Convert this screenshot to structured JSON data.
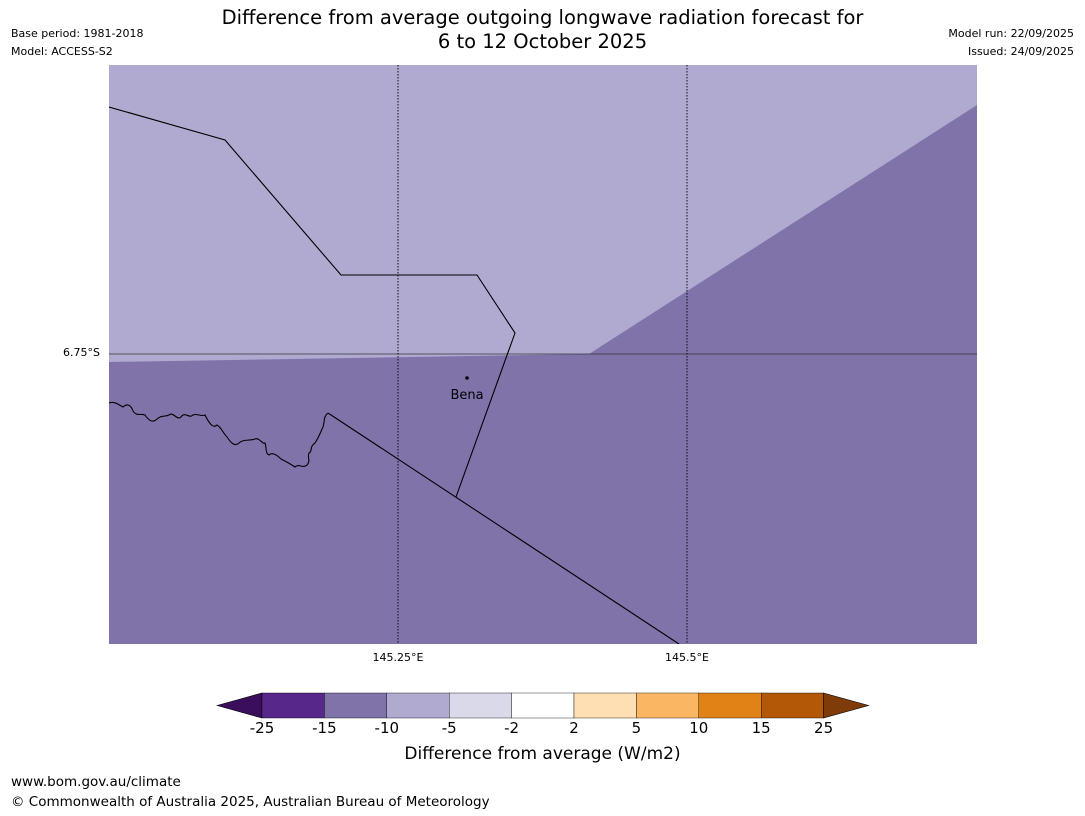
{
  "title_line1": "Difference from average outgoing longwave radiation forecast for",
  "title_line2": "6 to 12 October 2025",
  "meta_left": {
    "base_period": "Base period: 1981-2018",
    "model": "Model: ACCESS-S2"
  },
  "meta_right": {
    "model_run": "Model run: 22/09/2025",
    "issued": "Issued: 24/09/2025"
  },
  "map": {
    "latitude_labels": [
      "6.75°S"
    ],
    "longitude_labels": [
      "145.25°E",
      "145.5°E"
    ],
    "places": [
      {
        "name": "Bena"
      }
    ],
    "region_colors": {
      "light": "#b0aad1",
      "dark": "#7f73aa"
    }
  },
  "colorbar": {
    "title": "Difference from average (W/m2)",
    "ticks": [
      "-25",
      "-15",
      "-10",
      "-5",
      "-2",
      "2",
      "5",
      "10",
      "15",
      "25"
    ],
    "colors": [
      "#3a0e5b",
      "#57288a",
      "#7f73aa",
      "#b0aad1",
      "#d9d9ea",
      "#ffffff",
      "#fedfb3",
      "#fbb663",
      "#e08215",
      "#b25806",
      "#7f3b08"
    ]
  },
  "footer": {
    "url": "www.bom.gov.au/climate",
    "copyright": "© Commonwealth of Australia 2025, Australian Bureau of Meteorology"
  }
}
